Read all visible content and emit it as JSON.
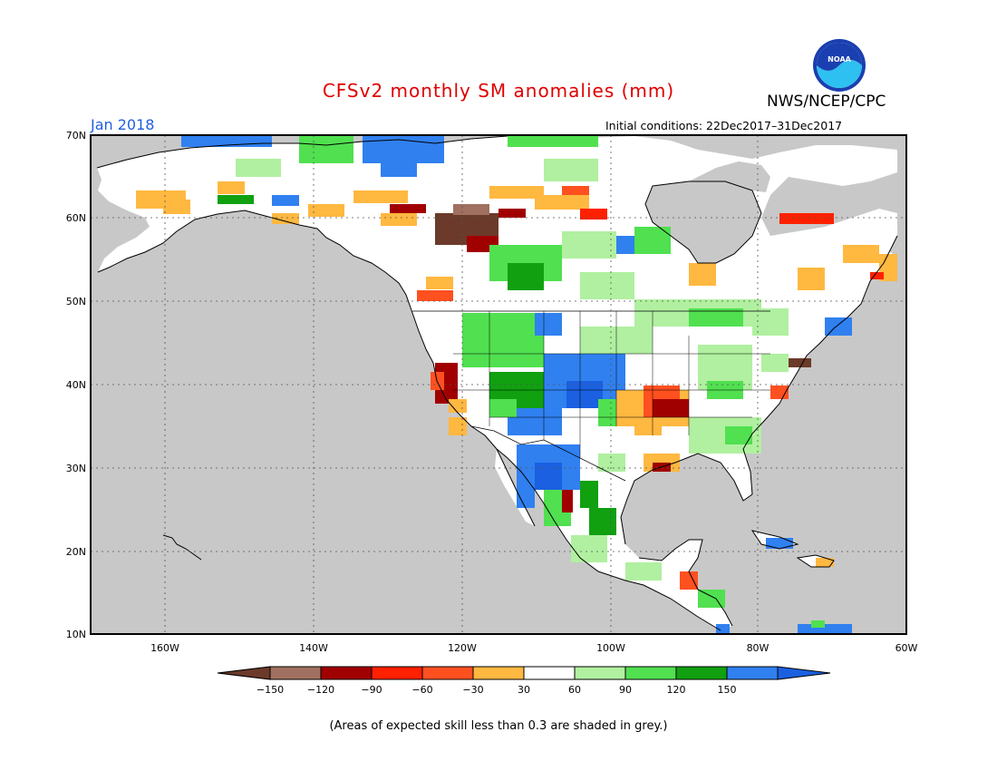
{
  "title": "CFSv2 monthly SM anomalies (mm)",
  "org": "NWS/NCEP/CPC",
  "logo_text": "NOAA",
  "month": "Jan 2018",
  "initial_conditions": "Initial conditions: 22Dec2017–31Dec2017",
  "lat_labels": [
    "70N",
    "60N",
    "50N",
    "40N",
    "30N",
    "20N",
    "10N"
  ],
  "lon_labels": [
    "160W",
    "140W",
    "120W",
    "100W",
    "80W",
    "60W"
  ],
  "legend": {
    "tick_labels": [
      "−150",
      "−120",
      "−90",
      "−60",
      "−30",
      "30",
      "60",
      "90",
      "120",
      "150"
    ],
    "colors": [
      "#6b3a2a",
      "#a07060",
      "#a00000",
      "#ff2000",
      "#ff5020",
      "#ffb840",
      "#ffffff",
      "#b0f0a0",
      "#50e050",
      "#10a010",
      "#3080f0",
      "#1a60e0"
    ]
  },
  "note": "(Areas of expected skill less than 0.3 are shaded in grey.)"
}
